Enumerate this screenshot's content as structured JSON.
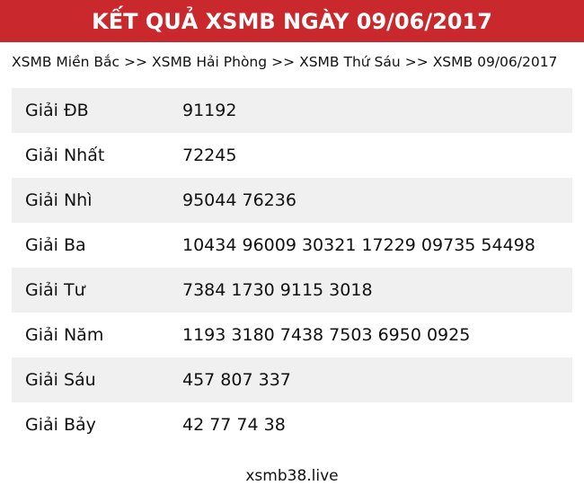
{
  "header": {
    "title": "KẾT QUẢ XSMB NGÀY 09/06/2017"
  },
  "breadcrumb": {
    "separator": ">>",
    "items": [
      "XSMB Miền Bắc",
      "XSMB Hải Phòng",
      "XSMB Thứ Sáu",
      "XSMB 09/06/2017"
    ]
  },
  "results_table": {
    "rows": [
      {
        "label": "Giải ĐB",
        "value": "91192"
      },
      {
        "label": "Giải Nhất",
        "value": "72245"
      },
      {
        "label": "Giải Nhì",
        "value": "95044 76236"
      },
      {
        "label": "Giải Ba",
        "value": "10434 96009 30321 17229 09735 54498"
      },
      {
        "label": "Giải Tư",
        "value": "7384 1730 9115 3018"
      },
      {
        "label": "Giải Năm",
        "value": "1193 3180 7438 7503 6950 0925"
      },
      {
        "label": "Giải Sáu",
        "value": "457 807 337"
      },
      {
        "label": "Giải Bảy",
        "value": "42 77 74 38"
      }
    ]
  },
  "footer": {
    "site": "xsmb38.live"
  },
  "colors": {
    "header_bg": "#C9292C",
    "header_text": "#FFFFFF",
    "stripe_bg": "#F0F0F0",
    "body_text": "#111111"
  }
}
